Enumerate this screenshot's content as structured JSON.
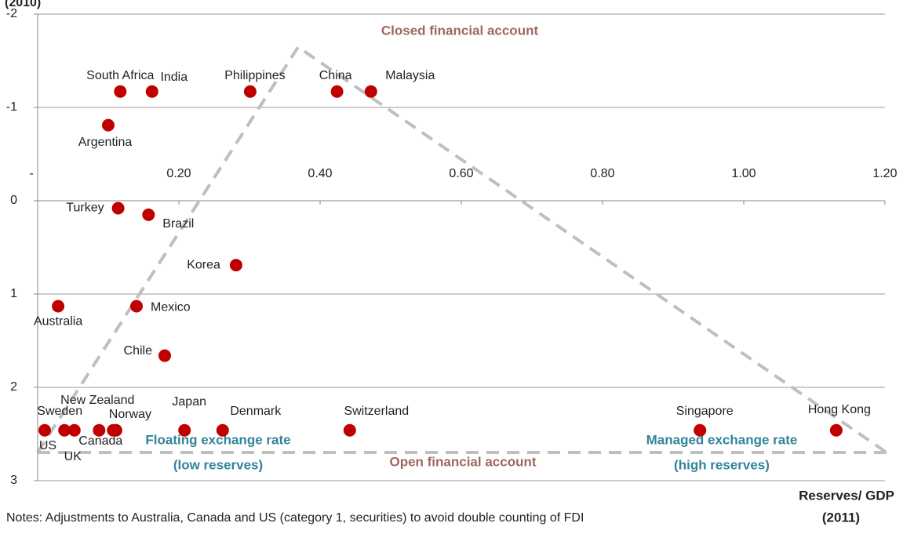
{
  "chart_data": {
    "type": "scatter",
    "y_label": "(2010)",
    "x_label": [
      "Reserves/ GDP",
      "(2011)"
    ],
    "note": "Notes: Adjustments to Australia, Canada and US  (category 1, securities) to avoid double counting of FDI",
    "annotations": [
      "Closed financial account",
      "Open financial account",
      "Floating exchange rate",
      "(low reserves)",
      "Managed exchange rate",
      "(high reserves)"
    ],
    "y_inverted": true,
    "xlim": [
      0,
      1.2
    ],
    "ylim": [
      -2,
      3
    ],
    "xticks": [
      {
        "value": 0,
        "label": "-"
      },
      {
        "value": 0.2,
        "label": "0.20"
      },
      {
        "value": 0.4,
        "label": "0.40"
      },
      {
        "value": 0.6,
        "label": "0.60"
      },
      {
        "value": 0.8,
        "label": "0.80"
      },
      {
        "value": 1.0,
        "label": "1.00"
      },
      {
        "value": 1.2,
        "label": "1.20"
      }
    ],
    "yticks": [
      -2,
      -1,
      0,
      1,
      2,
      3
    ],
    "grid": true,
    "color": "#c00000",
    "labels": [
      "South Africa",
      "India",
      "Philippines",
      "China",
      "Malaysia",
      "Argentina",
      "Turkey",
      "Brazil",
      "Korea",
      "Australia",
      "Mexico",
      "Chile",
      "US",
      "Sweden",
      "UK",
      "Canada",
      "New Zealand",
      "Norway",
      "Japan",
      "Denmark",
      "Switzerland",
      "Singapore",
      "Hong Kong"
    ],
    "x": [
      0.117,
      0.162,
      0.301,
      0.424,
      0.472,
      0.1,
      0.114,
      0.157,
      0.281,
      0.029,
      0.14,
      0.18,
      0.01,
      0.038,
      0.052,
      0.087,
      0.107,
      0.111,
      0.208,
      0.262,
      0.442,
      0.938,
      1.131
    ],
    "values": [
      -1.17,
      -1.17,
      -1.17,
      -1.17,
      -1.17,
      -0.81,
      0.08,
      0.15,
      0.69,
      1.13,
      1.13,
      1.66,
      2.46,
      2.46,
      2.46,
      2.46,
      2.46,
      2.46,
      2.46,
      2.46,
      2.46,
      2.46,
      2.46
    ]
  }
}
